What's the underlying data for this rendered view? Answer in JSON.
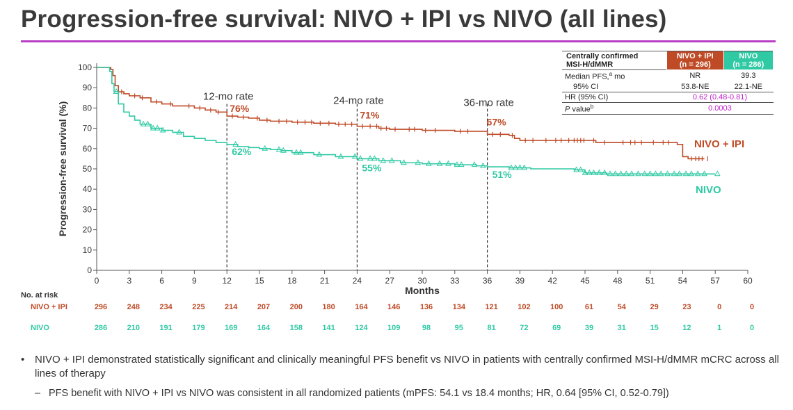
{
  "title": "Progression-free survival: NIVO + IPI vs NIVO (all lines)",
  "colors": {
    "nivo_ipi": "#bf4a26",
    "nivo": "#2fc9a4",
    "accent": "#c020c8",
    "title_rule": "#b83dc4"
  },
  "stats_table": {
    "header_label": [
      "Centrally confirmed",
      "MSI-H/dMMR"
    ],
    "col_nivo_ipi": [
      "NIVO + IPI",
      "(n = 296)"
    ],
    "col_nivo": [
      "NIVO",
      "(n = 286)"
    ],
    "median_label": "Median PFS,",
    "median_sup": "a",
    "median_unit": " mo",
    "median_nivo_ipi": "NR",
    "median_nivo": "39.3",
    "ci_label": "95% CI",
    "ci_nivo_ipi": "53.8-NE",
    "ci_nivo": "22.1-NE",
    "hr_label": "HR (95% CI)",
    "hr_value": "0.62 (0.48-0.81)",
    "p_label": "P",
    "p_label_rest": " value",
    "p_sup": "b",
    "p_value": "0.0003"
  },
  "chart_data": {
    "type": "line",
    "xlabel": "Months",
    "ylabel": "Progression-free survival (%)",
    "xlim": [
      0,
      60
    ],
    "ylim": [
      0,
      100
    ],
    "x_ticks": [
      "0",
      "3",
      "6",
      "9",
      "12",
      "15",
      "18",
      "21",
      "24",
      "27",
      "30",
      "33",
      "36",
      "39",
      "42",
      "45",
      "48",
      "51",
      "54",
      "57",
      "60"
    ],
    "y_ticks": [
      "0",
      "10",
      "20",
      "30",
      "40",
      "50",
      "60",
      "70",
      "80",
      "90",
      "100"
    ],
    "landmarks": [
      {
        "x": 12,
        "label": "12-mo rate",
        "value_ipi": "76%",
        "value_nivo": "62%"
      },
      {
        "x": 24,
        "label": "24-mo rate",
        "value_ipi": "71%",
        "value_nivo": "55%"
      },
      {
        "x": 36,
        "label": "36-mo rate",
        "value_ipi": "67%",
        "value_nivo": "51%"
      }
    ],
    "series": [
      {
        "name": "NIVO + IPI",
        "color": "#bf4a26",
        "points": [
          [
            0,
            100
          ],
          [
            1.3,
            99
          ],
          [
            1.5,
            96
          ],
          [
            1.7,
            91
          ],
          [
            2,
            88
          ],
          [
            2.5,
            87
          ],
          [
            3,
            86
          ],
          [
            4,
            85
          ],
          [
            5,
            83
          ],
          [
            6,
            82
          ],
          [
            7,
            81
          ],
          [
            8,
            81
          ],
          [
            9,
            80
          ],
          [
            10,
            79
          ],
          [
            11,
            78
          ],
          [
            12,
            76
          ],
          [
            13,
            75.5
          ],
          [
            14,
            75
          ],
          [
            15,
            74
          ],
          [
            16,
            73.5
          ],
          [
            18,
            73
          ],
          [
            20,
            72.5
          ],
          [
            22,
            72
          ],
          [
            24,
            71
          ],
          [
            26,
            70
          ],
          [
            27,
            69.5
          ],
          [
            30,
            69
          ],
          [
            33,
            68.5
          ],
          [
            36,
            67
          ],
          [
            37,
            67
          ],
          [
            38,
            66.5
          ],
          [
            38.5,
            65
          ],
          [
            39,
            64
          ],
          [
            42,
            64
          ],
          [
            45,
            64
          ],
          [
            46,
            63
          ],
          [
            48,
            63
          ],
          [
            51,
            63
          ],
          [
            53.5,
            62
          ],
          [
            54,
            56
          ],
          [
            54.5,
            55
          ],
          [
            56,
            55
          ]
        ],
        "censor_x": [
          2.3,
          3.5,
          4.2,
          5.5,
          6.8,
          8.5,
          9.5,
          10.5,
          11.2,
          12.5,
          13.5,
          14.8,
          15.7,
          16.8,
          17.5,
          18.5,
          19.2,
          19.8,
          20.6,
          21.4,
          22.3,
          22.9,
          23.5,
          24.5,
          25.2,
          25.8,
          26.2,
          26.7,
          27.5,
          28.8,
          29.3,
          30.3,
          31.2,
          33.5,
          34.2,
          36.5,
          37.2,
          38.3,
          39.5,
          40.2,
          41.4,
          42.3,
          42.8,
          43.5,
          44,
          44.3,
          44.6,
          44.9,
          45.8,
          46.8,
          48.5,
          49.2,
          49.6,
          50.2,
          51.3,
          52.2,
          52.7,
          54.8,
          55.2,
          55.5,
          55.8,
          56.3
        ]
      },
      {
        "name": "NIVO",
        "color": "#2fc9a4",
        "points": [
          [
            0,
            100
          ],
          [
            1,
            100
          ],
          [
            1.2,
            98
          ],
          [
            1.4,
            92
          ],
          [
            1.6,
            88
          ],
          [
            2,
            82
          ],
          [
            2.5,
            78
          ],
          [
            3,
            76
          ],
          [
            3.5,
            74
          ],
          [
            4,
            72
          ],
          [
            5,
            70
          ],
          [
            6,
            69
          ],
          [
            7,
            68
          ],
          [
            8,
            66
          ],
          [
            9,
            65
          ],
          [
            10,
            64
          ],
          [
            11,
            63
          ],
          [
            12,
            62
          ],
          [
            13,
            61
          ],
          [
            14,
            60.5
          ],
          [
            15,
            60
          ],
          [
            16,
            59.5
          ],
          [
            17,
            59
          ],
          [
            18,
            58
          ],
          [
            20,
            57
          ],
          [
            22,
            56
          ],
          [
            24,
            55
          ],
          [
            26,
            54
          ],
          [
            28,
            53
          ],
          [
            30,
            52.5
          ],
          [
            33,
            52
          ],
          [
            35,
            51.5
          ],
          [
            36,
            51
          ],
          [
            38,
            50.5
          ],
          [
            40,
            50
          ],
          [
            42,
            50
          ],
          [
            44,
            49.5
          ],
          [
            45,
            48
          ],
          [
            47,
            47.5
          ],
          [
            50,
            47.5
          ],
          [
            53,
            47.5
          ],
          [
            57,
            47.5
          ]
        ],
        "censor_x": [
          1.8,
          4.3,
          4.7,
          5.2,
          5.6,
          6.1,
          7.6,
          12.8,
          15.5,
          16.8,
          17.2,
          18.4,
          18.8,
          20.5,
          22.5,
          23.8,
          24.3,
          25.2,
          25.6,
          26.4,
          27.2,
          28.3,
          29.6,
          30.6,
          31.6,
          32.4,
          33.2,
          33.6,
          34.8,
          35.6,
          38.2,
          38.6,
          39,
          39.4,
          44.2,
          44.6,
          45,
          45.4,
          45.8,
          46.3,
          46.8,
          47.3,
          47.8,
          48.3,
          48.8,
          49.3,
          49.9,
          50.5,
          51,
          51.5,
          52,
          52.6,
          53.2,
          53.7,
          54.3,
          54.8,
          55.4,
          56,
          57.2
        ]
      }
    ],
    "series_labels": [
      "NIVO + IPI",
      "NIVO"
    ],
    "at_risk": {
      "title": "No. at risk",
      "rows": [
        {
          "label": "NIVO + IPI",
          "values": [
            "296",
            "248",
            "234",
            "225",
            "214",
            "207",
            "200",
            "180",
            "164",
            "146",
            "136",
            "134",
            "121",
            "102",
            "100",
            "61",
            "54",
            "29",
            "23",
            "0",
            "0"
          ]
        },
        {
          "label": "NIVO",
          "values": [
            "286",
            "210",
            "191",
            "179",
            "169",
            "164",
            "158",
            "141",
            "124",
            "109",
            "98",
            "95",
            "81",
            "72",
            "69",
            "39",
            "31",
            "15",
            "12",
            "1",
            "0"
          ]
        }
      ]
    }
  },
  "bullets": {
    "main_marker": "•",
    "main": "NIVO + IPI demonstrated statistically significant and clinically meaningful PFS benefit vs NIVO in patients with centrally confirmed MSI-H/dMMR mCRC across all lines of therapy",
    "sub_marker": "–",
    "sub": "PFS benefit with NIVO + IPI vs NIVO was consistent in all randomized patients (mPFS: 54.1 vs 18.4 months; HR, 0.64 [95% CI, 0.52-0.79])"
  }
}
